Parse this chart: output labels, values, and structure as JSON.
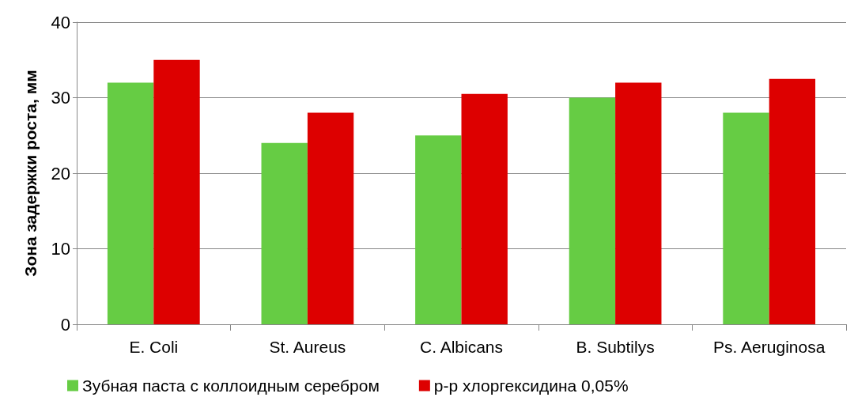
{
  "chart_data": {
    "type": "bar",
    "ylabel": "Зона задержки роста, мм",
    "categories": [
      "E. Coli",
      "St. Aureus",
      "C. Albicans",
      "B. Subtilys",
      "Ps. Aeruginosa"
    ],
    "series": [
      {
        "name": "Зубная паста с коллоидным серебром",
        "color": "#66cc44",
        "values": [
          32,
          24,
          25,
          30,
          28
        ]
      },
      {
        "name": "р-р хлоргексидина 0,05%",
        "color": "#dd0000",
        "values": [
          35,
          28,
          30.5,
          32,
          32.5
        ]
      }
    ],
    "ylim": [
      0,
      40
    ],
    "yticks": [
      0,
      10,
      20,
      30,
      40
    ],
    "grid": "y",
    "legend": "bottom"
  }
}
